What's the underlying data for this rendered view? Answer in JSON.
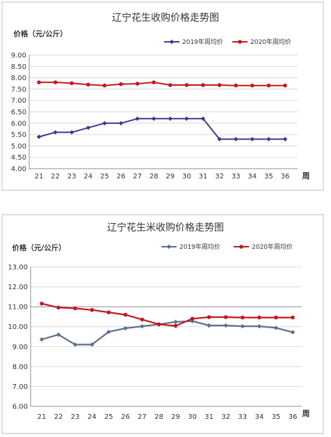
{
  "chart_data": [
    {
      "type": "line",
      "title": "辽宁花生收购价格走势图",
      "ylabel": "价格（元/公斤）",
      "xlabel": "周",
      "categories": [
        "21",
        "22",
        "23",
        "24",
        "25",
        "26",
        "27",
        "28",
        "29",
        "30",
        "31",
        "32",
        "33",
        "34",
        "35",
        "36"
      ],
      "yticks": [
        "9.00",
        "8.50",
        "8.00",
        "7.50",
        "7.00",
        "6.50",
        "6.00",
        "5.50",
        "5.00",
        "4.50",
        "4.00"
      ],
      "ylim": [
        4.0,
        9.0
      ],
      "grid": true,
      "legend_position": "top-right",
      "series": [
        {
          "name": "2019年周均价",
          "color": "#3b3a8f",
          "marker": "diamond",
          "values": [
            5.4,
            5.6,
            5.6,
            5.8,
            6.0,
            6.0,
            6.2,
            6.2,
            6.2,
            6.2,
            6.2,
            5.3,
            5.3,
            5.3,
            5.3,
            5.3
          ]
        },
        {
          "name": "2020年周均价",
          "color": "#c0181e",
          "marker": "circle",
          "values": [
            7.8,
            7.8,
            7.76,
            7.7,
            7.66,
            7.72,
            7.74,
            7.8,
            7.68,
            7.68,
            7.68,
            7.68,
            7.66,
            7.66,
            7.66,
            7.66
          ]
        }
      ]
    },
    {
      "type": "line",
      "title": "辽宁花生米收购价格走势图",
      "ylabel": "价格（元/公斤）",
      "xlabel": "周",
      "categories": [
        "21",
        "22",
        "23",
        "24",
        "25",
        "26",
        "27",
        "28",
        "29",
        "30",
        "31",
        "32",
        "33",
        "34",
        "35",
        "36"
      ],
      "yticks": [
        "13.00",
        "12.00",
        "11.00",
        "10.00",
        "9.00",
        "8.00",
        "7.00",
        "6.00"
      ],
      "ylim": [
        6.0,
        13.0
      ],
      "grid": true,
      "legend_position": "top-right",
      "series": [
        {
          "name": "2019年周均价",
          "color": "#5b6e8c",
          "marker": "diamond",
          "values": [
            9.36,
            9.6,
            9.1,
            9.1,
            9.74,
            9.92,
            10.02,
            10.12,
            10.24,
            10.28,
            10.06,
            10.06,
            10.02,
            10.02,
            9.94,
            9.72
          ]
        },
        {
          "name": "2020年周均价",
          "color": "#c0181e",
          "marker": "circle",
          "values": [
            11.16,
            10.96,
            10.92,
            10.84,
            10.72,
            10.6,
            10.36,
            10.12,
            10.04,
            10.4,
            10.48,
            10.48,
            10.46,
            10.46,
            10.46,
            10.46
          ]
        }
      ]
    }
  ]
}
